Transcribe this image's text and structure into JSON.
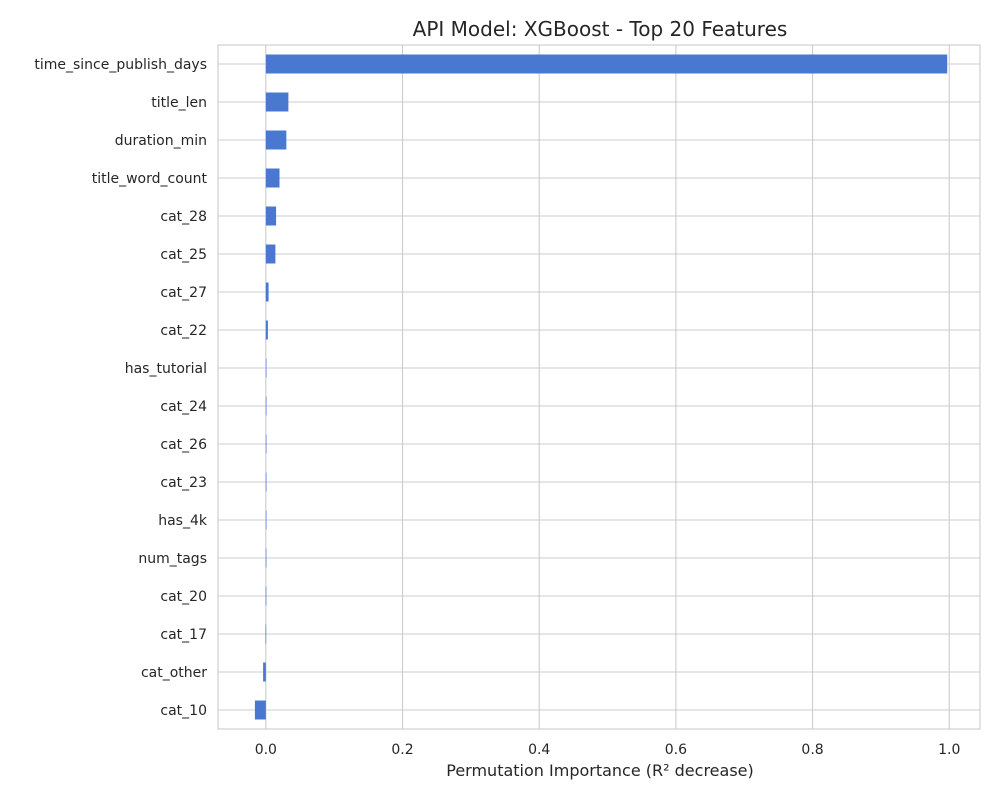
{
  "chart_data": {
    "type": "bar",
    "orientation": "horizontal",
    "title": "API Model: XGBoost - Top 20 Features",
    "xlabel": "Permutation Importance (R² decrease)",
    "ylabel": "",
    "xlim": [
      -0.07,
      1.045
    ],
    "x_ticks": [
      0.0,
      0.2,
      0.4,
      0.6,
      0.8,
      1.0
    ],
    "x_tick_labels": [
      "0.0",
      "0.2",
      "0.4",
      "0.6",
      "0.8",
      "1.0"
    ],
    "grid": true,
    "bar_color": "#4878d0",
    "categories": [
      "time_since_publish_days",
      "title_len",
      "duration_min",
      "title_word_count",
      "cat_28",
      "cat_25",
      "cat_27",
      "cat_22",
      "has_tutorial",
      "cat_24",
      "cat_26",
      "cat_23",
      "has_4k",
      "num_tags",
      "cat_20",
      "cat_17",
      "cat_other",
      "cat_10"
    ],
    "values": [
      0.997,
      0.033,
      0.03,
      0.02,
      0.015,
      0.014,
      0.004,
      0.003,
      0.0005,
      0.0004,
      0.0003,
      0.0002,
      0.0001,
      -0.0001,
      -0.0002,
      -0.0004,
      -0.004,
      -0.016
    ]
  }
}
